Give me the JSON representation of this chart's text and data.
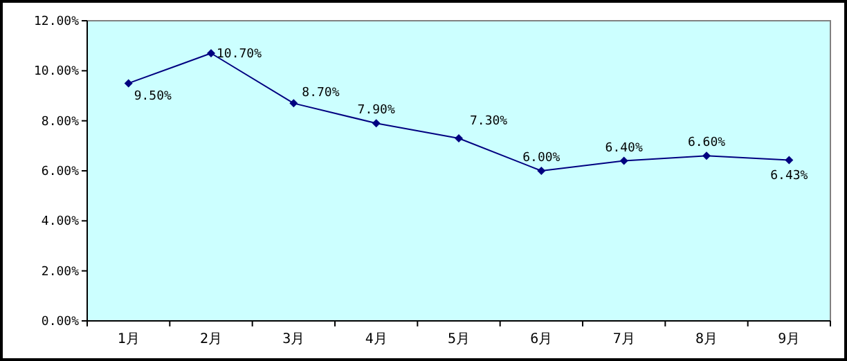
{
  "chart_data": {
    "type": "line",
    "categories": [
      "1月",
      "2月",
      "3月",
      "4月",
      "5月",
      "6月",
      "7月",
      "8月",
      "9月"
    ],
    "series": [
      {
        "color": "#000080",
        "values": [
          9.5,
          10.7,
          8.7,
          7.9,
          7.3,
          6.0,
          6.4,
          6.6,
          6.43
        ],
        "value_labels": [
          "9.50%",
          "10.70%",
          "8.70%",
          "7.90%",
          "7.30%",
          "6.00%",
          "6.40%",
          "6.60%",
          "6.43%"
        ]
      }
    ],
    "ylim": [
      0,
      12
    ],
    "yticks": [
      {
        "value": 0,
        "label": "0.00%"
      },
      {
        "value": 2,
        "label": "2.00%"
      },
      {
        "value": 4,
        "label": "4.00%"
      },
      {
        "value": 6,
        "label": "6.00%"
      },
      {
        "value": 8,
        "label": "8.00%"
      },
      {
        "value": 10,
        "label": "10.00%"
      },
      {
        "value": 12,
        "label": "12.00%"
      }
    ],
    "marker": "diamond",
    "grid": false
  }
}
